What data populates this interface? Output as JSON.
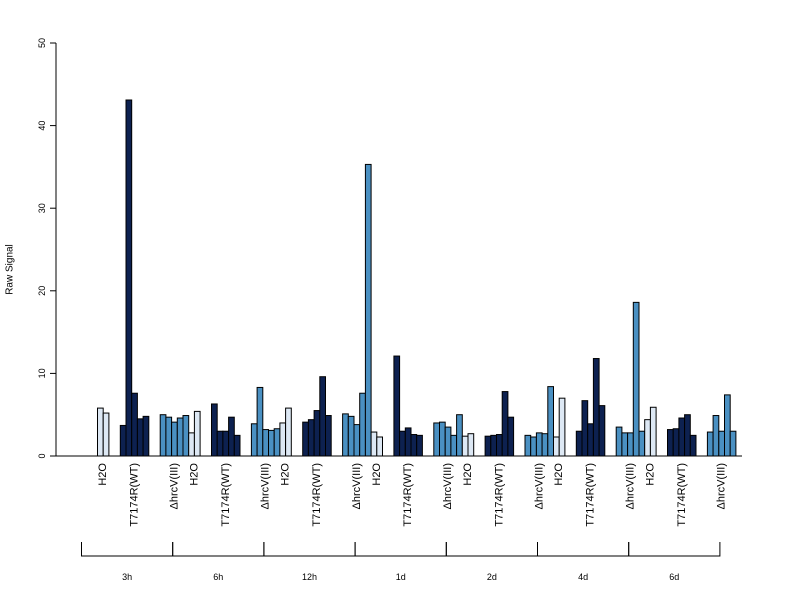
{
  "chart_data": {
    "type": "bar",
    "ylabel": "Raw Signal",
    "ylim": [
      0,
      50
    ],
    "yticks": [
      0,
      10,
      20,
      30,
      40,
      50
    ],
    "grid": false,
    "legend": "none",
    "colors": {
      "H2O": "#dde8f4",
      "T7174R(WT)": "#0d2150",
      "ΔhrcV(III)": "#4a90c2"
    },
    "groups": [
      {
        "label": "3h",
        "conditions": [
          {
            "name": "H2O",
            "values": [
              5.8,
              5.2
            ]
          },
          {
            "name": "T7174R(WT)",
            "values": [
              3.7,
              43.1,
              7.6,
              4.5,
              4.8
            ]
          },
          {
            "name": "ΔhrcV(III)",
            "values": [
              5.0,
              4.7,
              4.1,
              4.6,
              4.9
            ]
          }
        ]
      },
      {
        "label": "6h",
        "conditions": [
          {
            "name": "H2O",
            "values": [
              2.8,
              5.4
            ]
          },
          {
            "name": "T7174R(WT)",
            "values": [
              6.3,
              3.0,
              3.0,
              4.7,
              2.5
            ]
          },
          {
            "name": "ΔhrcV(III)",
            "values": [
              3.9,
              8.3,
              3.2,
              3.1,
              3.3
            ]
          }
        ]
      },
      {
        "label": "12h",
        "conditions": [
          {
            "name": "H2O",
            "values": [
              4.0,
              5.8
            ]
          },
          {
            "name": "T7174R(WT)",
            "values": [
              4.1,
              4.4,
              5.5,
              9.6,
              4.9
            ]
          },
          {
            "name": "ΔhrcV(III)",
            "values": [
              5.1,
              4.8,
              3.8,
              7.6,
              35.3
            ]
          }
        ]
      },
      {
        "label": "1d",
        "conditions": [
          {
            "name": "H2O",
            "values": [
              2.9,
              2.3
            ]
          },
          {
            "name": "T7174R(WT)",
            "values": [
              12.1,
              3.0,
              3.4,
              2.6,
              2.5
            ]
          },
          {
            "name": "ΔhrcV(III)",
            "values": [
              4.0,
              4.1,
              3.5,
              2.5,
              5.0
            ]
          }
        ]
      },
      {
        "label": "2d",
        "conditions": [
          {
            "name": "H2O",
            "values": [
              2.4,
              2.7
            ]
          },
          {
            "name": "T7174R(WT)",
            "values": [
              2.4,
              2.5,
              2.6,
              7.8,
              4.7
            ]
          },
          {
            "name": "ΔhrcV(III)",
            "values": [
              2.5,
              2.3,
              2.8,
              2.7,
              8.4
            ]
          }
        ]
      },
      {
        "label": "4d",
        "conditions": [
          {
            "name": "H2O",
            "values": [
              2.3,
              7.0
            ]
          },
          {
            "name": "T7174R(WT)",
            "values": [
              3.0,
              6.7,
              3.9,
              11.8,
              6.1
            ]
          },
          {
            "name": "ΔhrcV(III)",
            "values": [
              3.5,
              2.8,
              2.8,
              18.6,
              3.0
            ]
          }
        ]
      },
      {
        "label": "6d",
        "conditions": [
          {
            "name": "H2O",
            "values": [
              4.4,
              5.9
            ]
          },
          {
            "name": "T7174R(WT)",
            "values": [
              3.2,
              3.3,
              4.6,
              5.0,
              2.5
            ]
          },
          {
            "name": "ΔhrcV(III)",
            "values": [
              2.9,
              4.9,
              3.0,
              7.4,
              3.0
            ]
          }
        ]
      }
    ]
  }
}
